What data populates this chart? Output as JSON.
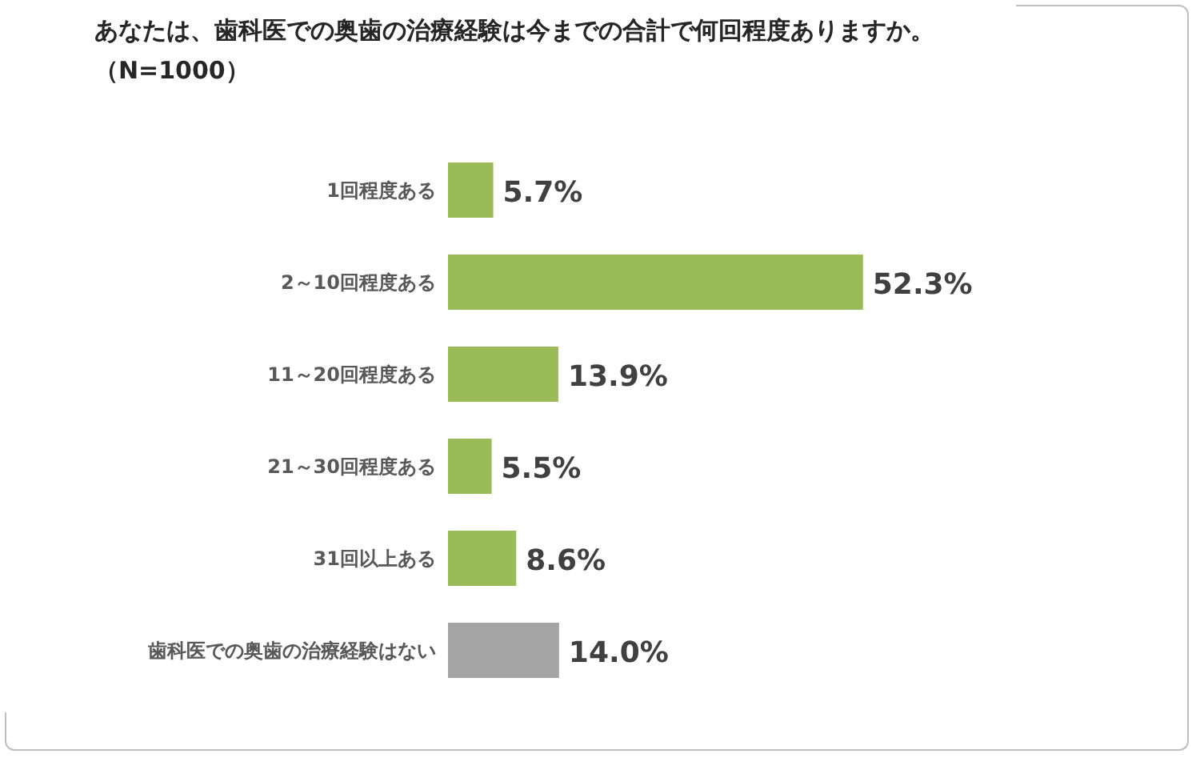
{
  "chart_data": {
    "type": "bar",
    "orientation": "horizontal",
    "title": "あなたは、歯科医での奥歯の治療経験は今までの合計で何回程度ありますか。",
    "subtitle": "（N=1000）",
    "categories": [
      "1回程度ある",
      "2～10回程度ある",
      "11～20回程度ある",
      "21～30回程度ある",
      "31回以上ある",
      "歯科医での奥歯の治療経験はない"
    ],
    "values": [
      5.7,
      52.3,
      13.9,
      5.5,
      8.6,
      14.0
    ],
    "colors": [
      "#9bbb59",
      "#9bbb59",
      "#9bbb59",
      "#9bbb59",
      "#9bbb59",
      "#a5a5a5"
    ],
    "value_labels": [
      "5.7%",
      "52.3%",
      "13.9%",
      "5.5%",
      "8.6%",
      "14.0%"
    ]
  }
}
